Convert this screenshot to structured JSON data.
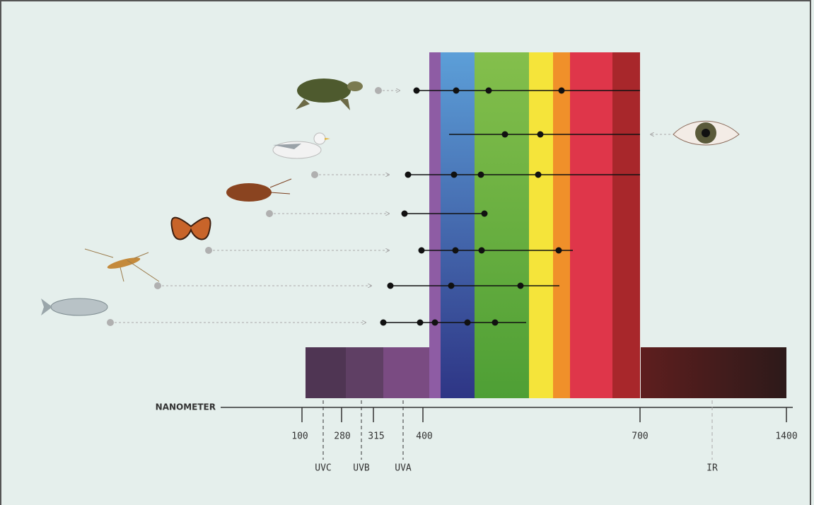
{
  "axis": {
    "label": "NANOMETER",
    "ticks": [
      "100",
      "280",
      "315",
      "400",
      "700",
      "1400"
    ],
    "bands": [
      "UVC",
      "UVB",
      "UVA",
      "IR"
    ]
  }
}
